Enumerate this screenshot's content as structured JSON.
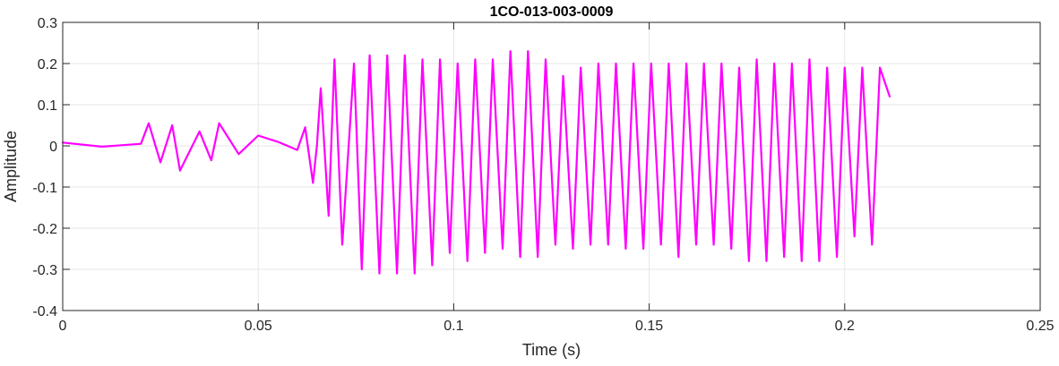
{
  "chart_data": {
    "type": "line",
    "title": "1CO-013-003-0009",
    "xlabel": "Time (s)",
    "ylabel": "Amplitude",
    "xlim": [
      0,
      0.25
    ],
    "ylim": [
      -0.4,
      0.3
    ],
    "xticks": [
      0,
      0.05,
      0.1,
      0.15,
      0.2,
      0.25
    ],
    "xtick_labels": [
      "0",
      "0.05",
      "0.1",
      "0.15",
      "0.2",
      "0.25"
    ],
    "yticks": [
      -0.4,
      -0.3,
      -0.2,
      -0.1,
      0,
      0.1,
      0.2,
      0.3
    ],
    "ytick_labels": [
      "-0.4",
      "-0.3",
      "-0.2",
      "-0.1",
      "0",
      "0.1",
      "0.2",
      "0.3"
    ],
    "grid": true,
    "series": [
      {
        "color": "#ff00ff",
        "x": [
          0,
          0.01,
          0.02,
          0.022,
          0.025,
          0.028,
          0.03,
          0.035,
          0.038,
          0.04,
          0.045,
          0.05,
          0.055,
          0.06,
          0.062,
          0.064,
          0.065,
          0.066,
          0.068,
          0.0695,
          0.0715,
          0.0745,
          0.0765,
          0.0785,
          0.081,
          0.083,
          0.0855,
          0.0875,
          0.09,
          0.092,
          0.0945,
          0.0965,
          0.099,
          0.101,
          0.1035,
          0.1055,
          0.108,
          0.11,
          0.1125,
          0.1145,
          0.117,
          0.119,
          0.1215,
          0.1235,
          0.126,
          0.128,
          0.1305,
          0.1325,
          0.135,
          0.137,
          0.1395,
          0.1415,
          0.144,
          0.146,
          0.1485,
          0.1505,
          0.153,
          0.155,
          0.1575,
          0.1595,
          0.162,
          0.164,
          0.1665,
          0.1685,
          0.171,
          0.173,
          0.1755,
          0.1775,
          0.18,
          0.182,
          0.1845,
          0.1865,
          0.189,
          0.191,
          0.1935,
          0.1955,
          0.198,
          0.2,
          0.2025,
          0.2045,
          0.207,
          0.209,
          0.2115
        ],
        "y": [
          0.008,
          -0.002,
          0.005,
          0.055,
          -0.04,
          0.05,
          -0.06,
          0.035,
          -0.035,
          0.055,
          -0.02,
          0.025,
          0.01,
          -0.01,
          0.045,
          -0.09,
          0.0,
          0.14,
          -0.17,
          0.21,
          -0.24,
          0.2,
          -0.3,
          0.22,
          -0.31,
          0.22,
          -0.31,
          0.22,
          -0.31,
          0.21,
          -0.29,
          0.21,
          -0.26,
          0.2,
          -0.28,
          0.21,
          -0.26,
          0.21,
          -0.25,
          0.23,
          -0.27,
          0.23,
          -0.27,
          0.21,
          -0.24,
          0.17,
          -0.25,
          0.19,
          -0.24,
          0.2,
          -0.24,
          0.2,
          -0.25,
          0.2,
          -0.25,
          0.2,
          -0.24,
          0.2,
          -0.27,
          0.2,
          -0.24,
          0.2,
          -0.24,
          0.2,
          -0.25,
          0.19,
          -0.28,
          0.21,
          -0.28,
          0.2,
          -0.27,
          0.2,
          -0.28,
          0.21,
          -0.28,
          0.19,
          -0.27,
          0.19,
          -0.22,
          0.19,
          -0.24,
          0.19,
          0.12
        ]
      }
    ]
  }
}
